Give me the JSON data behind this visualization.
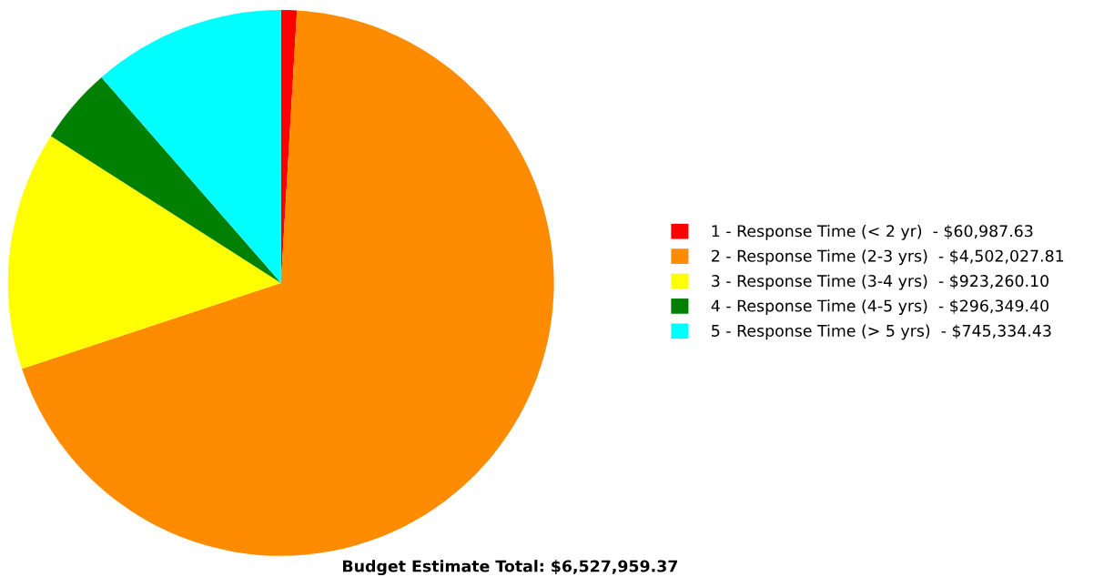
{
  "chart_data": {
    "type": "pie",
    "categories": [
      "1 - Response Time (< 2 yr)  -",
      "2 - Response Time (2-3 yrs)  -",
      "3 - Response Time (3-4 yrs)  -",
      "4 - Response Time (4-5 yrs)  -",
      "5 - Response Time (> 5 yrs)  -"
    ],
    "value_labels": [
      "$60,987.63",
      "$4,502,027.81",
      "$923,260.10",
      "$296,349.40",
      "$745,334.43"
    ],
    "values": [
      60987.63,
      4502027.81,
      923260.1,
      296349.4,
      745334.43
    ],
    "colors": [
      "#ff0000",
      "#ff8c00",
      "#ffff00",
      "#008000",
      "#00ffff"
    ],
    "legend": "right",
    "annotations": [
      "Budget Estimate Total: $6,527,959.37"
    ]
  }
}
